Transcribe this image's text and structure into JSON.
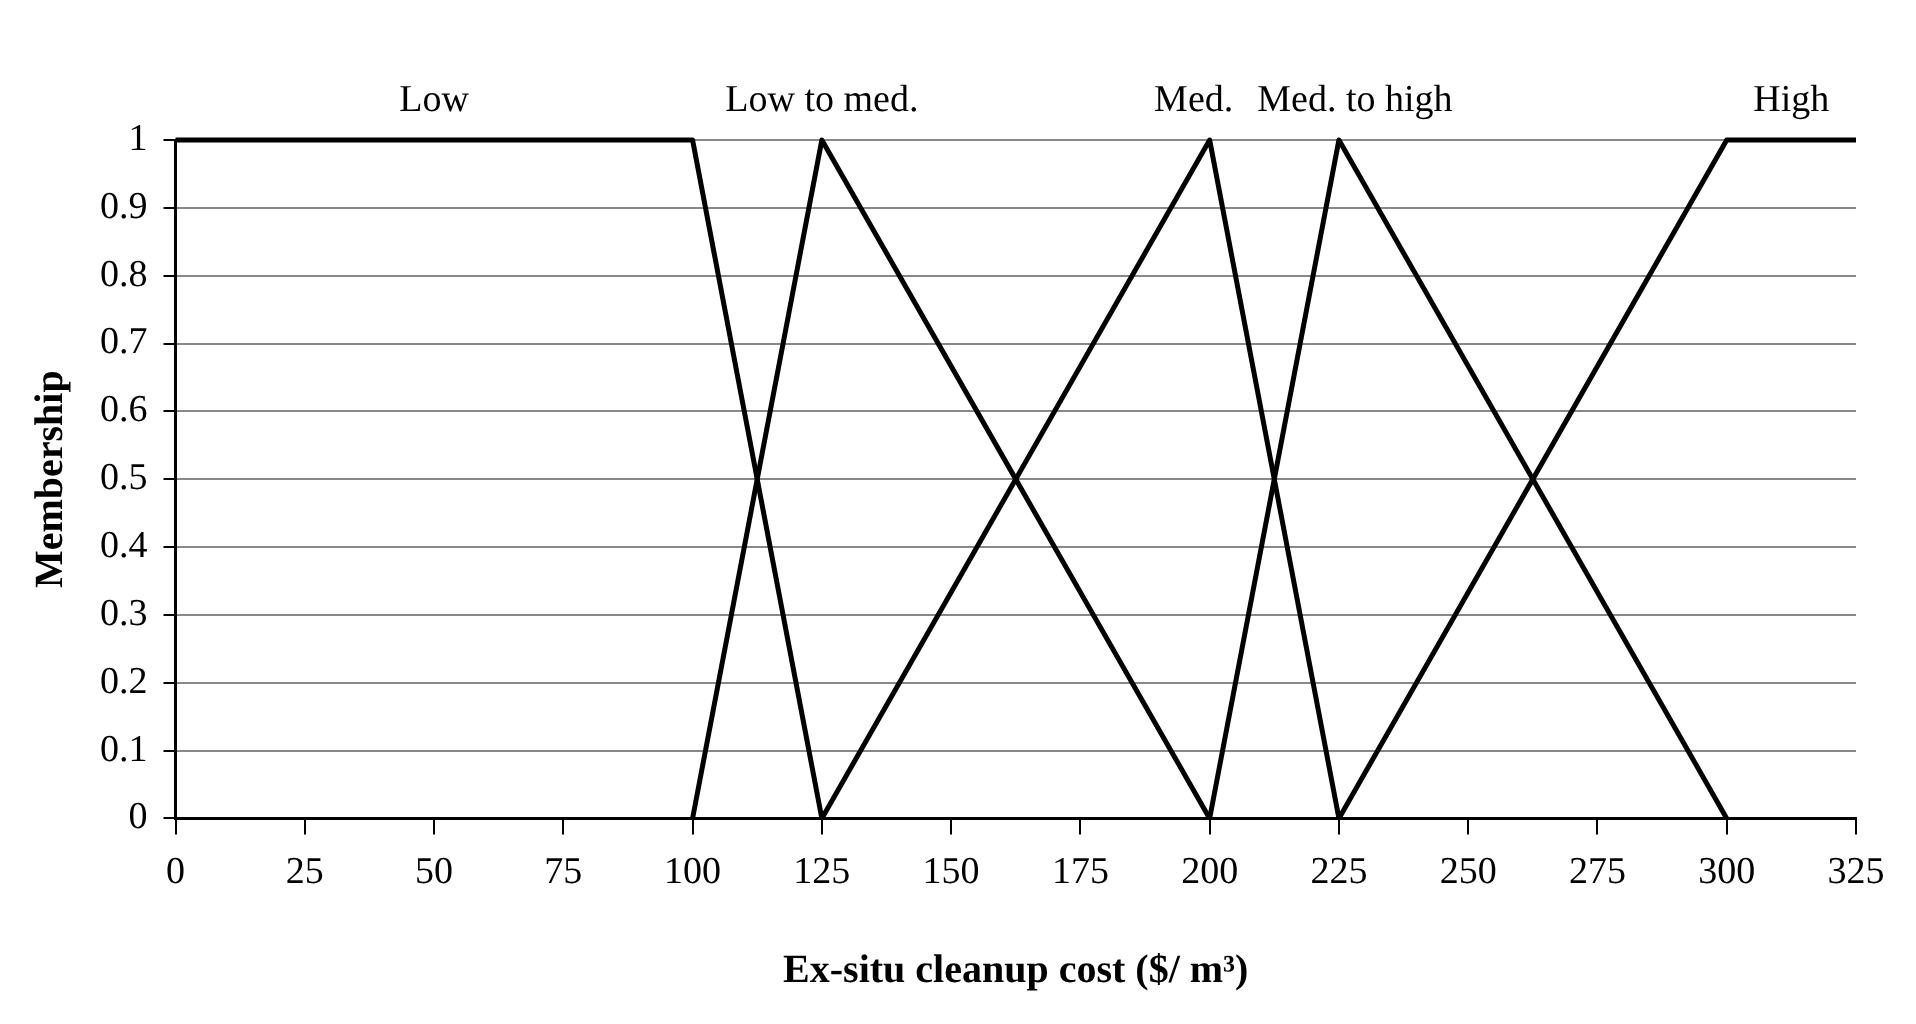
{
  "chart_data": {
    "type": "line",
    "xlabel": "Ex-situ cleanup cost ($/ m³)",
    "ylabel": "Membership",
    "xlim": [
      0,
      325
    ],
    "xticks": [
      0,
      25,
      50,
      75,
      100,
      125,
      150,
      175,
      200,
      225,
      250,
      275,
      300,
      325
    ],
    "ylim": [
      0,
      1
    ],
    "yticks": [
      0,
      0.1,
      0.2,
      0.3,
      0.4,
      0.5,
      0.6,
      0.7,
      0.8,
      0.9,
      1
    ],
    "grid": "y",
    "legend": false,
    "marker": "none",
    "line_style": "solid",
    "series": [
      {
        "name": "Low",
        "color": "#000000",
        "x": [
          0,
          100,
          125
        ],
        "values": [
          1,
          1,
          0
        ]
      },
      {
        "name": "Low to med.",
        "color": "#000000",
        "x": [
          100,
          125,
          200
        ],
        "values": [
          0,
          1,
          0
        ]
      },
      {
        "name": "Med.",
        "color": "#000000",
        "x": [
          125,
          200,
          225
        ],
        "values": [
          0,
          1,
          0
        ]
      },
      {
        "name": "Med. to high",
        "color": "#000000",
        "x": [
          200,
          225,
          300
        ],
        "values": [
          0,
          1,
          0
        ]
      },
      {
        "name": "High",
        "color": "#000000",
        "x": [
          225,
          300,
          325
        ],
        "values": [
          0,
          1,
          1
        ]
      }
    ]
  }
}
